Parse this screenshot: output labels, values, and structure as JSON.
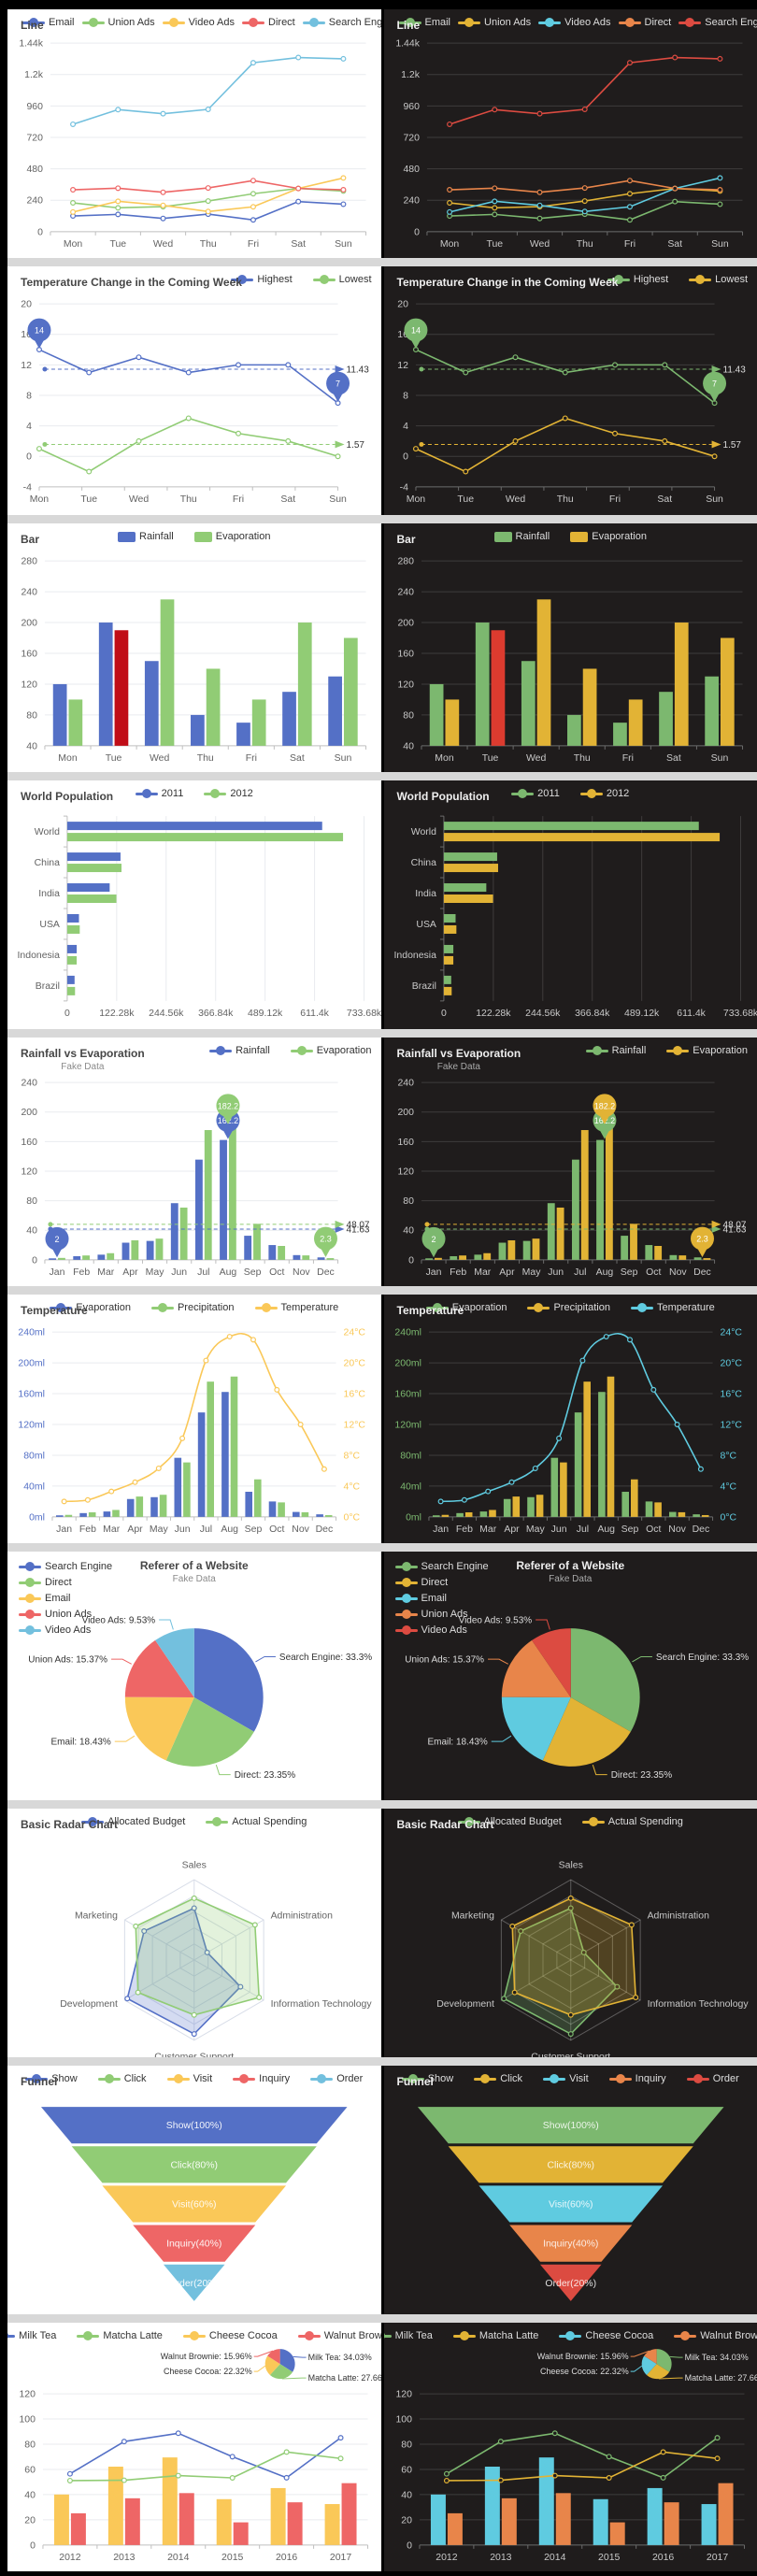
{
  "themes": {
    "light": {
      "bg": "#ffffff",
      "titleColor": "#464646",
      "subColor": "#8a8a8a",
      "legendText": "#333333",
      "axisLabel": "#636363",
      "axisLine": "#bfbfbf",
      "grid": "#e9ebef",
      "radarGrid": "#d8dde8",
      "funnelLabel": "rgba(255,255,255,0.92)",
      "highlight": "#c00d17",
      "palette": [
        "#5470c6",
        "#91cc75",
        "#fac858",
        "#ee6666",
        "#73c0de"
      ]
    },
    "dark": {
      "bg": "#1f1c1c",
      "titleColor": "#eeeeee",
      "subColor": "#aaaaaa",
      "legendText": "#dddddd",
      "axisLabel": "#c8c8c8",
      "axisLine": "#6b6b6b",
      "grid": "rgba(255,255,255,0.14)",
      "radarGrid": "rgba(255,255,255,0.28)",
      "funnelLabel": "rgba(255,255,255,0.85)",
      "highlight": "#dc3b2f",
      "palette": [
        "#7cb86f",
        "#e2b335",
        "#5fcbe0",
        "#e8854a",
        "#dc4b41"
      ]
    }
  },
  "chart_data": [
    {
      "id": "line-basic",
      "type": "line",
      "title": "Line",
      "legend": [
        "Email",
        "Union Ads",
        "Video Ads",
        "Direct",
        "Search Engine"
      ],
      "legendPos": "spread",
      "legendIcon": "linedot",
      "categories": [
        "Mon",
        "Tue",
        "Wed",
        "Thu",
        "Fri",
        "Sat",
        "Sun"
      ],
      "ymin": 0,
      "ymax": 1440,
      "yticks": [
        "0",
        "240",
        "480",
        "720",
        "960",
        "1.2k",
        "1.44k"
      ],
      "margins": [
        46,
        36,
        16,
        28
      ],
      "pointMode": false,
      "series": [
        {
          "name": "Email",
          "kind": "line",
          "colorIndex": 0,
          "values": [
            120,
            132,
            101,
            134,
            90,
            230,
            210
          ]
        },
        {
          "name": "Union Ads",
          "kind": "line",
          "colorIndex": 1,
          "values": [
            220,
            182,
            191,
            234,
            290,
            330,
            310
          ]
        },
        {
          "name": "Video Ads",
          "kind": "line",
          "colorIndex": 2,
          "values": [
            150,
            232,
            201,
            154,
            190,
            330,
            410
          ]
        },
        {
          "name": "Direct",
          "kind": "line",
          "colorIndex": 3,
          "values": [
            320,
            332,
            301,
            334,
            390,
            330,
            320
          ]
        },
        {
          "name": "Search Engine",
          "kind": "line",
          "colorIndex": 4,
          "values": [
            820,
            932,
            901,
            934,
            1290,
            1330,
            1320
          ]
        }
      ]
    },
    {
      "id": "temperature-week",
      "type": "line",
      "title": "Temperature Change in the Coming Week",
      "legend": [
        "Highest",
        "Lowest"
      ],
      "legendPos": "right",
      "legendIcon": "linedot",
      "categories": [
        "Mon",
        "Tue",
        "Wed",
        "Thu",
        "Fri",
        "Sat",
        "Sun"
      ],
      "ymin": -4,
      "ymax": 20,
      "yticks": [
        "-4",
        "0",
        "4",
        "8",
        "12",
        "16",
        "20"
      ],
      "margins": [
        34,
        40,
        46,
        30
      ],
      "pointMode": true,
      "series": [
        {
          "name": "Highest",
          "kind": "line",
          "colorIndex": 0,
          "values": [
            14,
            11,
            13,
            11,
            12,
            12,
            7
          ],
          "markline": {
            "value": 11.43,
            "label": "11.43"
          },
          "markpoints": [
            {
              "i": 0,
              "label": "14"
            },
            {
              "i": 6,
              "label": "7"
            }
          ]
        },
        {
          "name": "Lowest",
          "kind": "line",
          "colorIndex": 1,
          "values": [
            1,
            -2,
            2,
            5,
            3,
            2,
            0
          ],
          "markline": {
            "value": 1.57,
            "label": "1.57"
          }
        }
      ]
    },
    {
      "id": "bar-basic",
      "type": "bar",
      "title": "Bar",
      "legend": [
        "Rainfall",
        "Evaporation"
      ],
      "legendPos": "center",
      "legendIcon": "rect",
      "categories": [
        "Mon",
        "Tue",
        "Wed",
        "Thu",
        "Fri",
        "Sat",
        "Sun"
      ],
      "ymin": 40,
      "ymax": 280,
      "yticks": [
        "40",
        "80",
        "120",
        "160",
        "200",
        "240",
        "280"
      ],
      "margins": [
        40,
        40,
        16,
        28
      ],
      "series": [
        {
          "name": "Rainfall",
          "kind": "bar",
          "colorIndex": 0,
          "values": [
            120,
            200,
            150,
            80,
            70,
            110,
            130
          ]
        },
        {
          "name": "Evaporation",
          "kind": "bar",
          "colorIndex": 1,
          "values": [
            100,
            190,
            230,
            140,
            100,
            200,
            180
          ],
          "highlight": 1
        }
      ]
    },
    {
      "id": "world-population",
      "type": "hbar",
      "title": "World Population",
      "legend": [
        "2011",
        "2012"
      ],
      "legendPos": "center",
      "legendIcon": "linedot",
      "categories": [
        "World",
        "China",
        "India",
        "USA",
        "Indonesia",
        "Brazil"
      ],
      "xmax": 733680,
      "xticks": [
        "0",
        "122.28k",
        "244.56k",
        "366.84k",
        "489.12k",
        "611.4k",
        "733.68k"
      ],
      "margins": [
        64,
        38,
        18,
        30
      ],
      "series": [
        {
          "name": "2011",
          "colorIndex": 0,
          "values": [
            630230,
            131744,
            104970,
            29034,
            23489,
            18203
          ]
        },
        {
          "name": "2012",
          "colorIndex": 1,
          "values": [
            681807,
            134141,
            121594,
            31000,
            23438,
            19325
          ]
        }
      ]
    },
    {
      "id": "rainfall-evaporation",
      "type": "bar",
      "title": "Rainfall vs Evaporation",
      "subtitle": "Fake Data",
      "legend": [
        "Rainfall",
        "Evaporation"
      ],
      "legendPos": "right",
      "legendIcon": "linedot",
      "categories": [
        "Jan",
        "Feb",
        "Mar",
        "Apr",
        "May",
        "Jun",
        "Jul",
        "Aug",
        "Sep",
        "Oct",
        "Nov",
        "Dec"
      ],
      "ymin": 0,
      "ymax": 240,
      "yticks": [
        "0",
        "40",
        "80",
        "120",
        "160",
        "200",
        "240"
      ],
      "margins": [
        40,
        48,
        46,
        28
      ],
      "series": [
        {
          "name": "Rainfall",
          "kind": "bar",
          "colorIndex": 0,
          "values": [
            2.0,
            4.9,
            7.0,
            23.2,
            25.6,
            76.7,
            135.6,
            162.2,
            32.6,
            20.0,
            6.4,
            3.3
          ],
          "markline": {
            "value": 41.63,
            "label": "41.63"
          },
          "markpoints": [
            {
              "i": 7,
              "label": "162.2"
            },
            {
              "i": 0,
              "label": "2"
            }
          ]
        },
        {
          "name": "Evaporation",
          "kind": "bar",
          "colorIndex": 1,
          "values": [
            2.6,
            5.9,
            9.0,
            26.4,
            28.7,
            70.7,
            175.6,
            182.2,
            48.7,
            18.8,
            6.0,
            2.3
          ],
          "markline": {
            "value": 48.07,
            "label": "48.07"
          },
          "markpoints": [
            {
              "i": 7,
              "label": "182.2"
            },
            {
              "i": 11,
              "label": "2.3"
            }
          ]
        }
      ]
    },
    {
      "id": "temperature-mixed",
      "type": "bar",
      "title": "Temperature",
      "legend": [
        "Evaporation",
        "Precipitation",
        "Temperature"
      ],
      "legendPos": "center",
      "legendIcon": "linedot",
      "categories": [
        "Jan",
        "Feb",
        "Mar",
        "Apr",
        "May",
        "Jun",
        "Jul",
        "Aug",
        "Sep",
        "Oct",
        "Nov",
        "Dec"
      ],
      "ymin": 0,
      "ymax": 240,
      "rymax": 24,
      "yticks": [
        "0ml",
        "40ml",
        "80ml",
        "120ml",
        "160ml",
        "200ml",
        "240ml"
      ],
      "ryticks": [
        "0°C",
        "4°C",
        "8°C",
        "12°C",
        "16°C",
        "20°C",
        "24°C"
      ],
      "yLabelColorIdx": 0,
      "ryLabelColorIdx": 2,
      "margins": [
        48,
        40,
        48,
        28
      ],
      "series": [
        {
          "name": "Evaporation",
          "kind": "bar",
          "colorIndex": 0,
          "values": [
            2.0,
            4.9,
            7.0,
            23.2,
            25.6,
            76.7,
            135.6,
            162.2,
            32.6,
            20.0,
            6.4,
            3.3
          ]
        },
        {
          "name": "Precipitation",
          "kind": "bar",
          "colorIndex": 1,
          "values": [
            2.6,
            5.9,
            9.0,
            26.4,
            28.7,
            70.7,
            175.6,
            182.2,
            48.7,
            18.8,
            6.0,
            2.3
          ]
        },
        {
          "name": "Temperature",
          "kind": "line",
          "colorIndex": 2,
          "axis": "right",
          "smooth": true,
          "values": [
            2.0,
            2.2,
            3.3,
            4.5,
            6.3,
            10.2,
            20.3,
            23.4,
            23.0,
            16.5,
            12.0,
            6.2
          ]
        }
      ]
    },
    {
      "id": "referer-pie",
      "type": "pie",
      "title": "Referer of a Website",
      "subtitle": "Fake Data",
      "titlePos": "center",
      "legend": [
        "Search Engine",
        "Direct",
        "Email",
        "Union Ads",
        "Video Ads"
      ],
      "legendPos": "vert",
      "legendIcon": "linedot",
      "cx": 0.5,
      "cy": 156,
      "r": 74,
      "slices": [
        {
          "name": "Search Engine",
          "value": 1048,
          "label": "Search Engine: 33.3%"
        },
        {
          "name": "Direct",
          "value": 735,
          "label": "Direct: 23.35%"
        },
        {
          "name": "Email",
          "value": 580,
          "label": "Email: 18.43%"
        },
        {
          "name": "Union Ads",
          "value": 484,
          "label": "Union Ads: 15.37%"
        },
        {
          "name": "Video Ads",
          "value": 300,
          "label": "Video Ads: 9.53%"
        }
      ]
    },
    {
      "id": "radar-basic",
      "type": "radar",
      "title": "Basic Radar Chart",
      "legend": [
        "Allocated Budget",
        "Actual Spending"
      ],
      "legendPos": "center",
      "legendIcon": "linedot",
      "indicators": [
        "Sales",
        "Administration",
        "Information Technology",
        "Customer Support",
        "Development",
        "Marketing"
      ],
      "maxes": [
        6500,
        16000,
        30000,
        38000,
        52000,
        25000
      ],
      "series": [
        {
          "name": "Allocated Budget",
          "colorIndex": 0,
          "values": [
            4200,
            3000,
            20000,
            35000,
            50000,
            18000
          ]
        },
        {
          "name": "Actual Spending",
          "colorIndex": 1,
          "values": [
            5000,
            14000,
            28000,
            26000,
            42000,
            21000
          ]
        }
      ]
    },
    {
      "id": "funnel",
      "type": "funnel",
      "title": "Funnel",
      "legend": [
        "Show",
        "Click",
        "Visit",
        "Inquiry",
        "Order"
      ],
      "legendPos": "center",
      "legendIcon": "linedot",
      "values": [
        100,
        80,
        60,
        40,
        20
      ],
      "labels": [
        "Show(100%)",
        "Click(80%)",
        "Visit(60%)",
        "Inquiry(40%)",
        "Order(20%)"
      ]
    },
    {
      "id": "dataset-mix",
      "type": "bar",
      "legend": [
        "Milk Tea",
        "Matcha Latte",
        "Cheese Cocoa",
        "Walnut Brownie"
      ],
      "legendPos": "center",
      "legendIcon": "linedot",
      "categories": [
        "2012",
        "2013",
        "2014",
        "2015",
        "2016",
        "2017"
      ],
      "ymin": 0,
      "ymax": 120,
      "yticks": [
        "0",
        "20",
        "40",
        "60",
        "80",
        "100",
        "120"
      ],
      "margins": [
        38,
        76,
        14,
        28
      ],
      "series": [
        {
          "name": "Milk Tea",
          "kind": "line",
          "colorIndex": 0,
          "values": [
            56.5,
            82.1,
            88.7,
            70.1,
            53.4,
            85.1
          ]
        },
        {
          "name": "Matcha Latte",
          "kind": "line",
          "colorIndex": 1,
          "values": [
            51.1,
            51.4,
            55.1,
            53.3,
            73.8,
            68.7
          ]
        },
        {
          "name": "Cheese Cocoa",
          "kind": "bar",
          "colorIndex": 2,
          "values": [
            40.1,
            62.2,
            69.5,
            36.4,
            45.2,
            32.5
          ]
        },
        {
          "name": "Walnut Brownie",
          "kind": "bar",
          "colorIndex": 3,
          "values": [
            25.2,
            37.1,
            41.2,
            18.0,
            33.9,
            49.1
          ]
        }
      ],
      "pie": {
        "cx": 0.73,
        "cy": 44,
        "r": 16,
        "slices": [
          {
            "name": "Milk Tea",
            "pct": 34.03,
            "label": "Milk Tea: 34.03%",
            "side": 1,
            "dy": -7
          },
          {
            "name": "Matcha Latte",
            "pct": 27.66,
            "label": "Matcha Latte: 27.66%",
            "side": 1,
            "dy": 15
          },
          {
            "name": "Cheese Cocoa",
            "pct": 22.32,
            "label": "Cheese Cocoa: 22.32%",
            "side": -1,
            "dy": 8
          },
          {
            "name": "Walnut Brownie",
            "pct": 15.96,
            "label": "Walnut Brownie: 15.96%",
            "side": -1,
            "dy": -8
          }
        ]
      }
    }
  ]
}
